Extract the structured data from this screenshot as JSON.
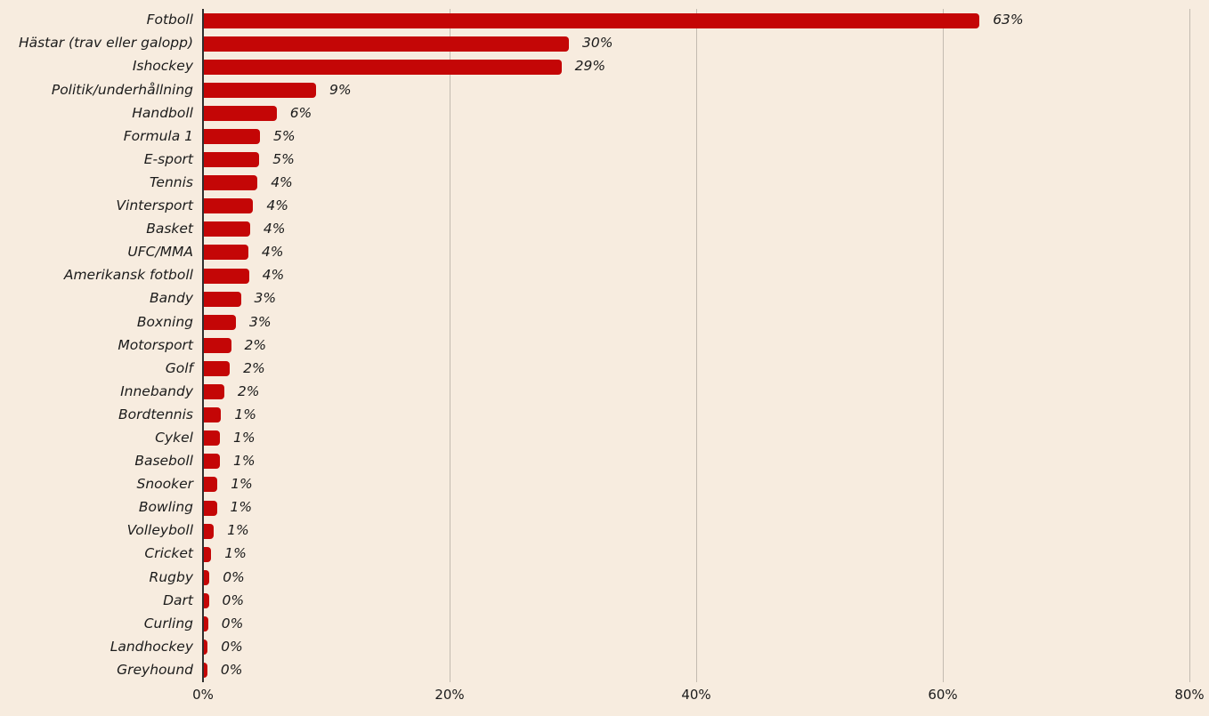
{
  "page": {
    "background_color": "#f7ecdf",
    "text_color": "#1b1b1b"
  },
  "chart_data": {
    "type": "bar",
    "orientation": "horizontal",
    "title": "",
    "xlabel": "",
    "ylabel": "",
    "grid": true,
    "legend": null,
    "bar_color": "#c40606",
    "grid_color": "#c3bbb0",
    "axis_color": "#2f2f2f",
    "categories": [
      "Fotboll",
      "Hästar (trav eller galopp)",
      "Ishockey",
      "Politik/underhållning",
      "Handboll",
      "Formula 1",
      "E-sport",
      "Tennis",
      "Vintersport",
      "Basket",
      "UFC/MMA",
      "Amerikansk fotboll",
      "Bandy",
      "Boxning",
      "Motorsport",
      "Golf",
      "Innebandy",
      "Bordtennis",
      "Cykel",
      "Baseboll",
      "Snooker",
      "Bowling",
      "Volleyboll",
      "Cricket",
      "Rugby",
      "Dart",
      "Curling",
      "Landhockey",
      "Greyhound"
    ],
    "values": [
      63,
      30,
      29,
      9,
      6,
      5,
      5,
      4,
      4,
      4,
      4,
      4,
      3,
      3,
      2,
      2,
      2,
      1,
      1,
      1,
      1,
      1,
      1,
      1,
      0,
      0,
      0,
      0,
      0
    ],
    "value_labels": [
      "63%",
      "30%",
      "29%",
      "9%",
      "6%",
      "5%",
      "5%",
      "4%",
      "4%",
      "4%",
      "4%",
      "4%",
      "3%",
      "3%",
      "2%",
      "2%",
      "2%",
      "1%",
      "1%",
      "1%",
      "1%",
      "1%",
      "1%",
      "1%",
      "0%",
      "0%",
      "0%",
      "0%",
      "0%"
    ],
    "bar_values_pct_est": [
      62.9,
      29.6,
      29.0,
      9.1,
      5.9,
      4.55,
      4.5,
      4.35,
      4.0,
      3.75,
      3.6,
      3.65,
      3.0,
      2.6,
      2.2,
      2.1,
      1.65,
      1.4,
      1.3,
      1.3,
      1.1,
      1.05,
      0.8,
      0.6,
      0.45,
      0.4,
      0.35,
      0.3,
      0.28
    ],
    "x_ticks": [
      "0%",
      "20%",
      "40%",
      "60%",
      "80%"
    ],
    "x_tick_values": [
      0,
      20,
      40,
      60,
      80
    ],
    "xlim": [
      0,
      81.6
    ]
  }
}
